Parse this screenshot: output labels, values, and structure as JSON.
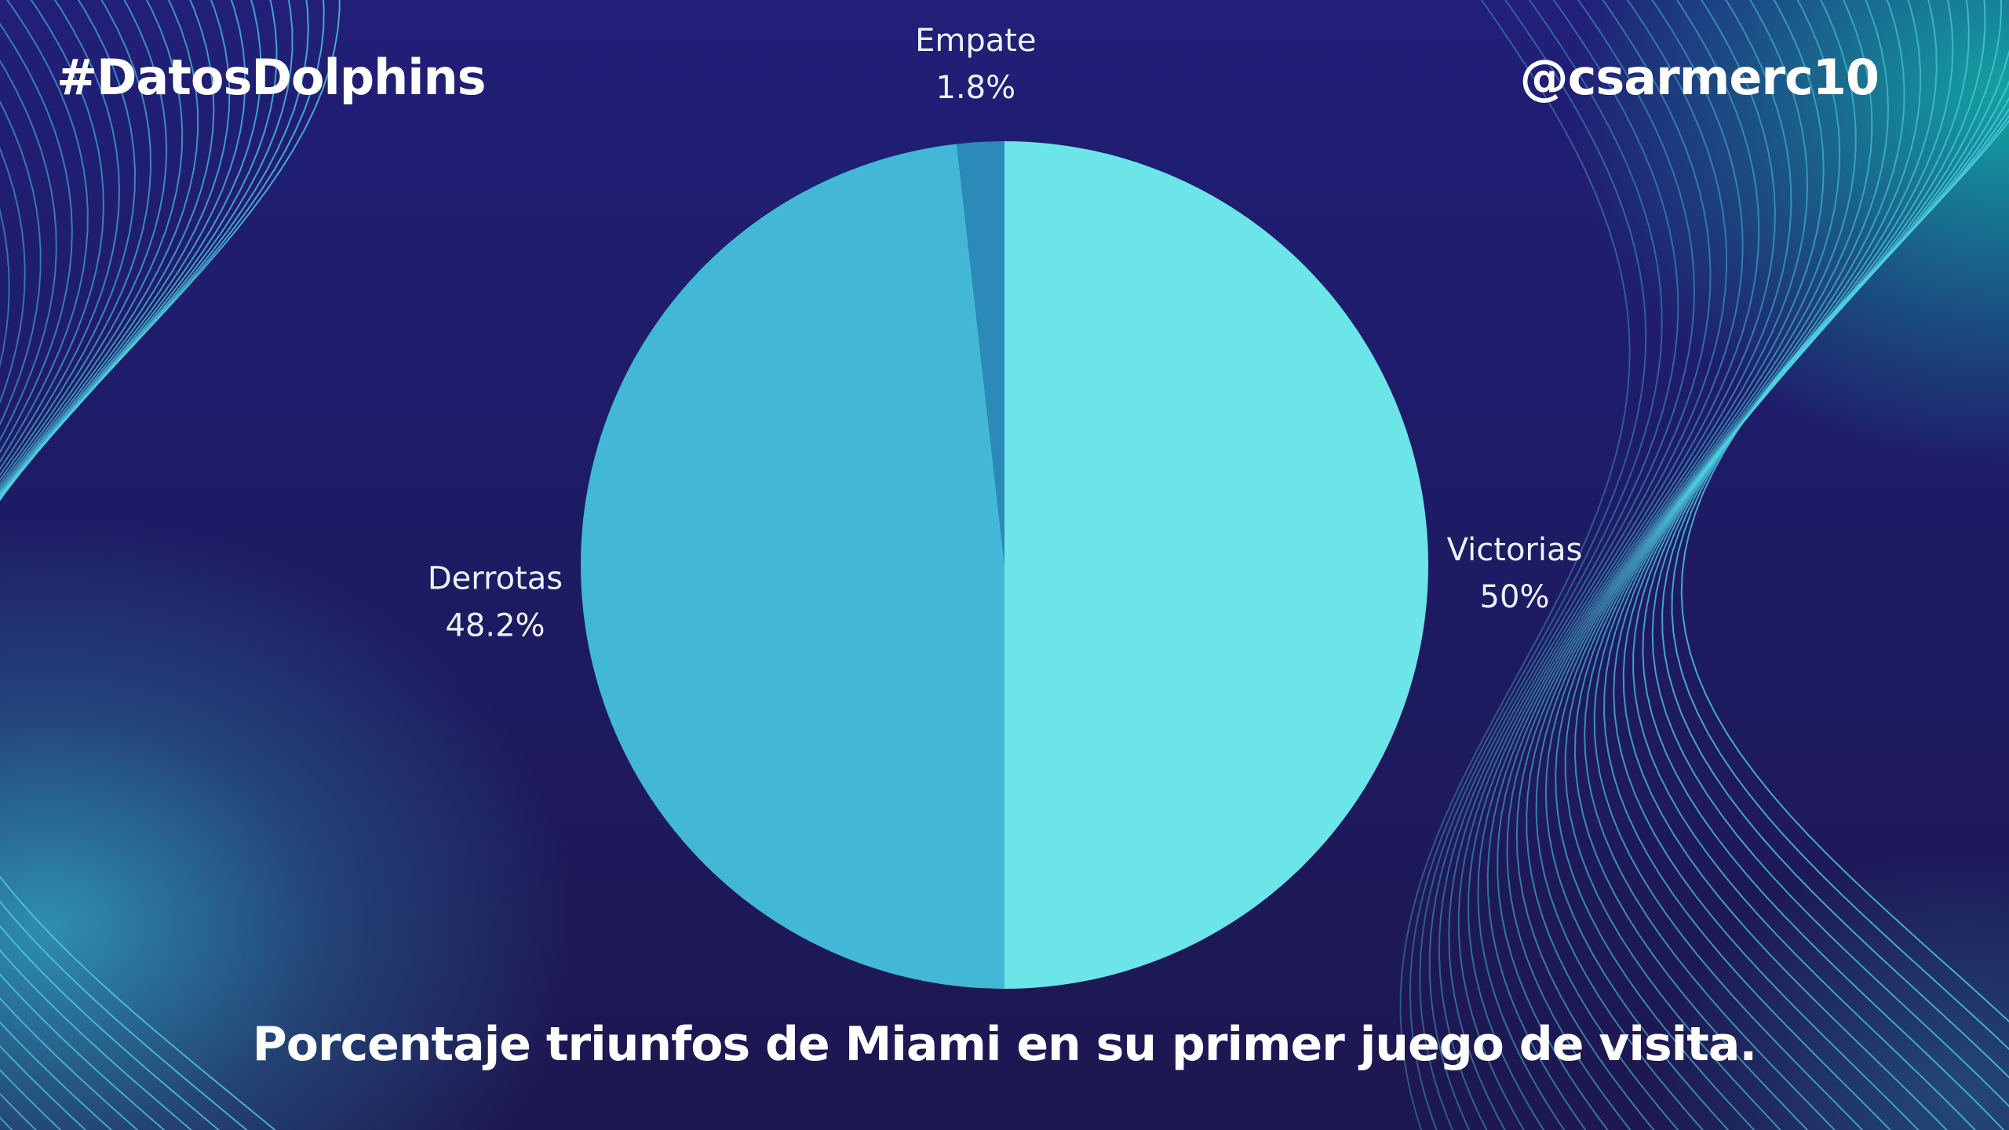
{
  "header": {
    "hashtag": "#DatosDolphins",
    "handle": "@csarmerc10"
  },
  "footer": {
    "title": "Porcentaje triunfos de Miami en su primer juego de visita."
  },
  "chart_data": {
    "type": "pie",
    "title": "Porcentaje triunfos de Miami en su primer juego de visita.",
    "slices": [
      {
        "label": "Victorias",
        "value": 50,
        "display": "50%",
        "color": "#6ce5e8"
      },
      {
        "label": "Derrotas",
        "value": 48.2,
        "display": "48.2%",
        "color": "#42b8d6"
      },
      {
        "label": "Empate",
        "value": 1.8,
        "display": "1.8%",
        "color": "#2b8ab8"
      }
    ],
    "start": "12 o'clock",
    "direction": "clockwise"
  },
  "colors": {
    "background": "#1e1b5e",
    "wave_line": "#4fd0e0",
    "text": "#ffffff"
  }
}
